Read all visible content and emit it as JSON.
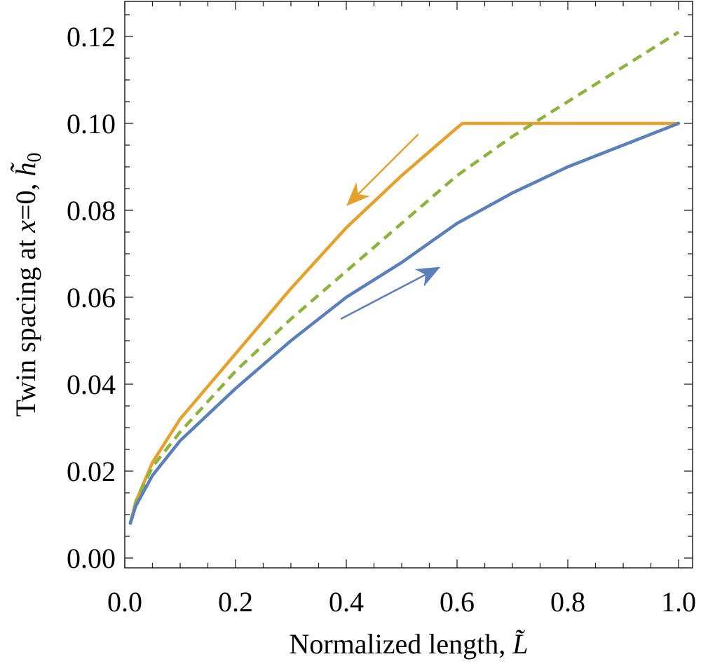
{
  "chart_data": {
    "type": "line",
    "xlabel": "Normalized length, ",
    "xlabel_symbol": "L̃",
    "ylabel": "Twin spacing at ",
    "ylabel_var": "x",
    "ylabel_mid": "=0, ",
    "ylabel_symbol": "h̃",
    "ylabel_sub": "0",
    "xlim": [
      0.0,
      1.0
    ],
    "ylim": [
      -0.002,
      0.127
    ],
    "x_ticks": [
      "0.0",
      "0.2",
      "0.4",
      "0.6",
      "0.8",
      "1.0"
    ],
    "y_ticks": [
      "0.00",
      "0.02",
      "0.04",
      "0.06",
      "0.08",
      "0.10",
      "0.12"
    ],
    "grid": false,
    "series": [
      {
        "color": "#e5a12e",
        "style": "solid",
        "x": [
          0.01,
          0.02,
          0.05,
          0.1,
          0.2,
          0.3,
          0.4,
          0.5,
          0.6,
          0.61,
          0.7,
          0.8,
          0.9,
          1.0
        ],
        "y": [
          0.008,
          0.013,
          0.022,
          0.032,
          0.047,
          0.062,
          0.076,
          0.088,
          0.099,
          0.1,
          0.1,
          0.1,
          0.1,
          0.1
        ]
      },
      {
        "color": "#8db23e",
        "style": "dashed",
        "x": [
          0.01,
          0.02,
          0.05,
          0.1,
          0.2,
          0.3,
          0.4,
          0.5,
          0.6,
          0.7,
          0.8,
          0.9,
          1.0
        ],
        "y": [
          0.008,
          0.013,
          0.021,
          0.029,
          0.043,
          0.055,
          0.066,
          0.077,
          0.088,
          0.097,
          0.105,
          0.113,
          0.121
        ]
      },
      {
        "color": "#5b7fb8",
        "style": "solid",
        "x": [
          0.01,
          0.02,
          0.05,
          0.1,
          0.2,
          0.3,
          0.4,
          0.5,
          0.6,
          0.7,
          0.8,
          0.9,
          1.0
        ],
        "y": [
          0.008,
          0.012,
          0.019,
          0.027,
          0.039,
          0.05,
          0.06,
          0.068,
          0.077,
          0.084,
          0.09,
          0.095,
          0.1
        ]
      }
    ],
    "annotations": [
      {
        "type": "arrow",
        "color": "#e5a12e",
        "from": [
          0.53,
          0.0975
        ],
        "to": [
          0.4,
          0.081
        ]
      },
      {
        "type": "arrow",
        "color": "#5b7fb8",
        "from": [
          0.39,
          0.055
        ],
        "to": [
          0.57,
          0.067
        ]
      }
    ]
  }
}
